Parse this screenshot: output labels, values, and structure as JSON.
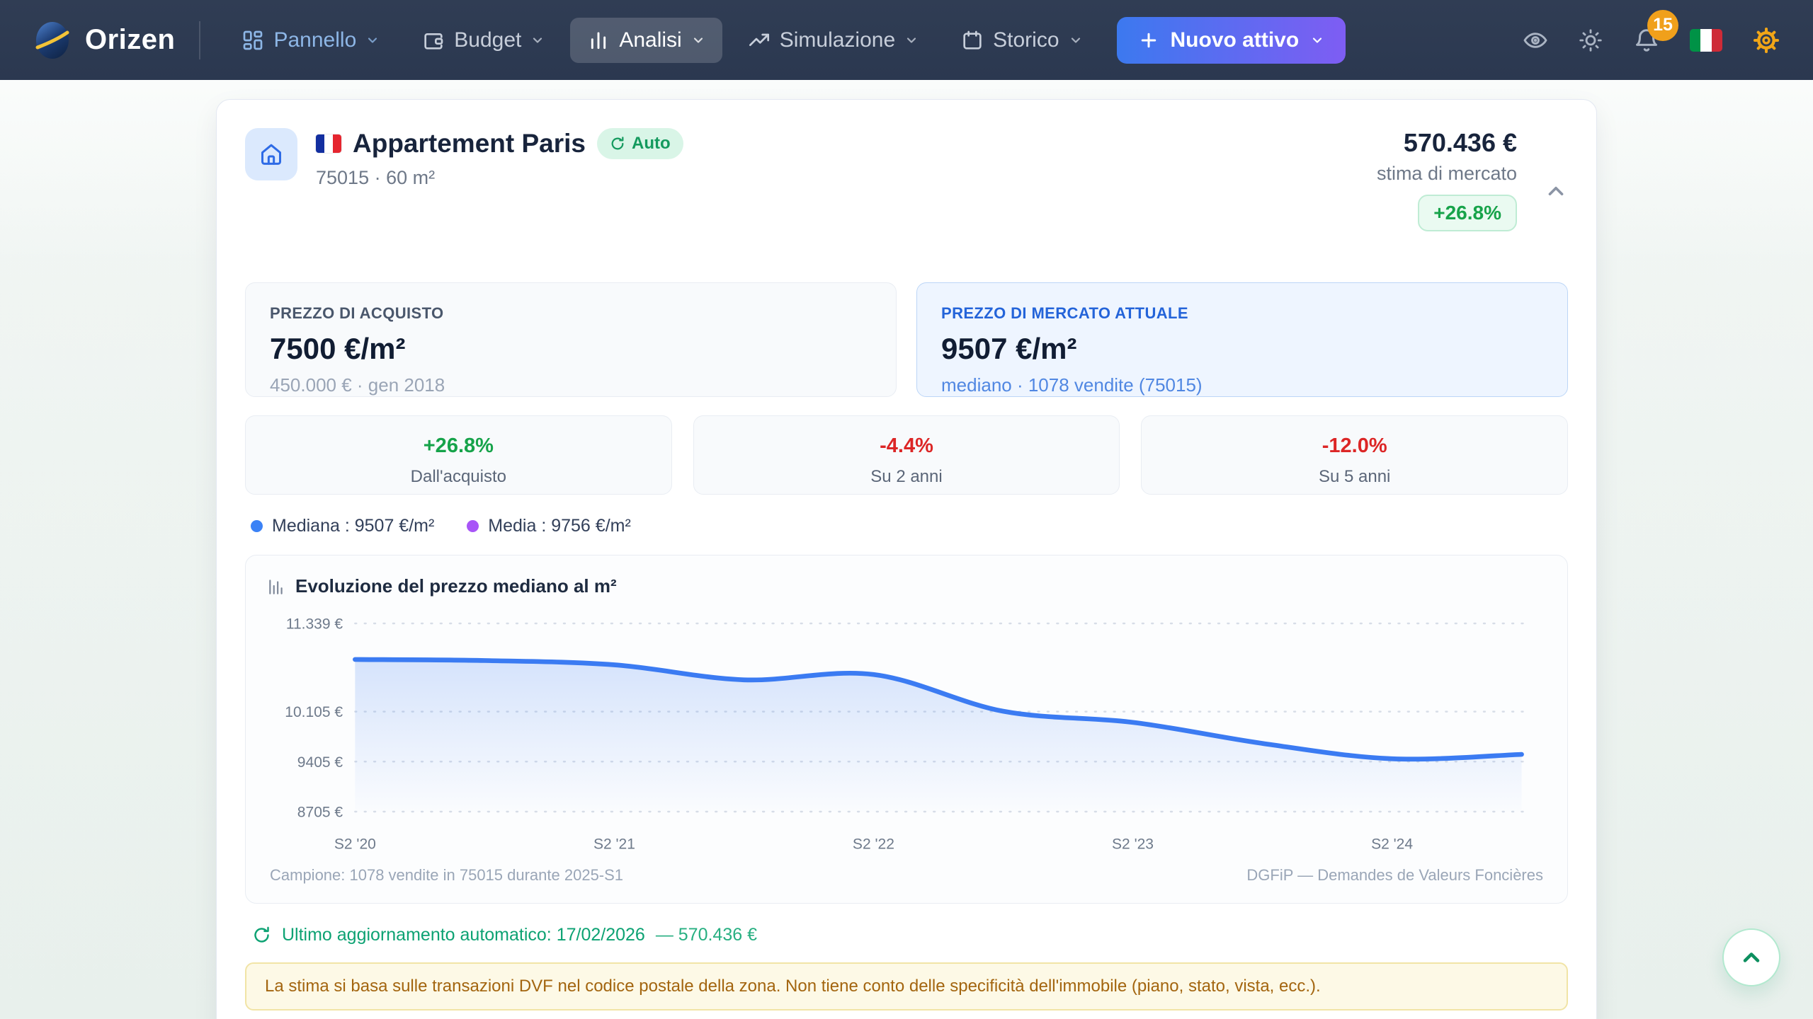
{
  "nav": {
    "brand": "Orizen",
    "items": [
      {
        "label": "Pannello"
      },
      {
        "label": "Budget"
      },
      {
        "label": "Analisi"
      },
      {
        "label": "Simulazione"
      },
      {
        "label": "Storico"
      }
    ],
    "new_asset_label": "Nuovo attivo",
    "notifications_count": "15"
  },
  "asset": {
    "title": "Appartement Paris",
    "auto_badge": "Auto",
    "subtitle": "75015 · 60 m²",
    "estimate_value": "570.436 €",
    "estimate_label": "stima di mercato",
    "estimate_change": "+26.8%"
  },
  "panels": {
    "purchase": {
      "label": "PREZZO DI ACQUISTO",
      "value": "7500 €/m²",
      "sub": "450.000 € · gen 2018"
    },
    "market": {
      "label": "PREZZO DI MERCATO ATTUALE",
      "value": "9507 €/m²",
      "sub": "mediano · 1078 vendite (75015)"
    }
  },
  "stats": [
    {
      "value": "+26.8%",
      "label": "Dall'acquisto",
      "direction": "up",
      "color": "#16a34a"
    },
    {
      "value": "-4.4%",
      "label": "Su 2 anni",
      "direction": "down",
      "color": "#dc2626"
    },
    {
      "value": "-12.0%",
      "label": "Su 5 anni",
      "direction": "down",
      "color": "#dc2626"
    }
  ],
  "legend": [
    {
      "label": "Mediana : 9507 €/m²",
      "color": "#3b82f6"
    },
    {
      "label": "Media : 9756 €/m²",
      "color": "#a855f7"
    }
  ],
  "chart_data": {
    "type": "area",
    "title": "Evoluzione del prezzo mediano al m²",
    "x": [
      "S2 '20",
      "S1 '21",
      "S2 '21",
      "S1 '22",
      "S2 '22",
      "S1 '23",
      "S2 '23",
      "S1 '24",
      "S2 '24",
      "S1 '25"
    ],
    "series": [
      {
        "name": "Mediana (€/m²)",
        "values": [
          10835,
          10820,
          10760,
          10550,
          10625,
          10110,
          9955,
          9660,
          9445,
          9507
        ]
      }
    ],
    "x_tick_labels": [
      "S2 '20",
      "S2 '21",
      "S2 '22",
      "S2 '23",
      "S2 '24"
    ],
    "x_tick_indices": [
      0,
      2,
      4,
      6,
      8
    ],
    "y_ticks": [
      {
        "value": 11339,
        "label": "11.339 €"
      },
      {
        "value": 10105,
        "label": "10.105 €"
      },
      {
        "value": 9405,
        "label": "9405 €"
      },
      {
        "value": 8705,
        "label": "8705 €"
      }
    ],
    "ylim": [
      8705,
      11339
    ],
    "grid": "horizontal-dotted",
    "legend_position": "above-chart",
    "line_color": "#3b7bf2",
    "footer_left": "Campione: 1078 vendite in 75015 durante 2025-S1",
    "footer_right": "DGFiP — Demandes de Valeurs Foncières"
  },
  "update_line": {
    "text": "Ultimo aggiornamento automatico: 17/02/2026",
    "amount": "— 570.436 €"
  },
  "warning": "La stima si basa sulle transazioni DVF nel codice postale della zona. Non tiene conto delle specificità dell'immobile (piano, stato, vista, ecc.)."
}
